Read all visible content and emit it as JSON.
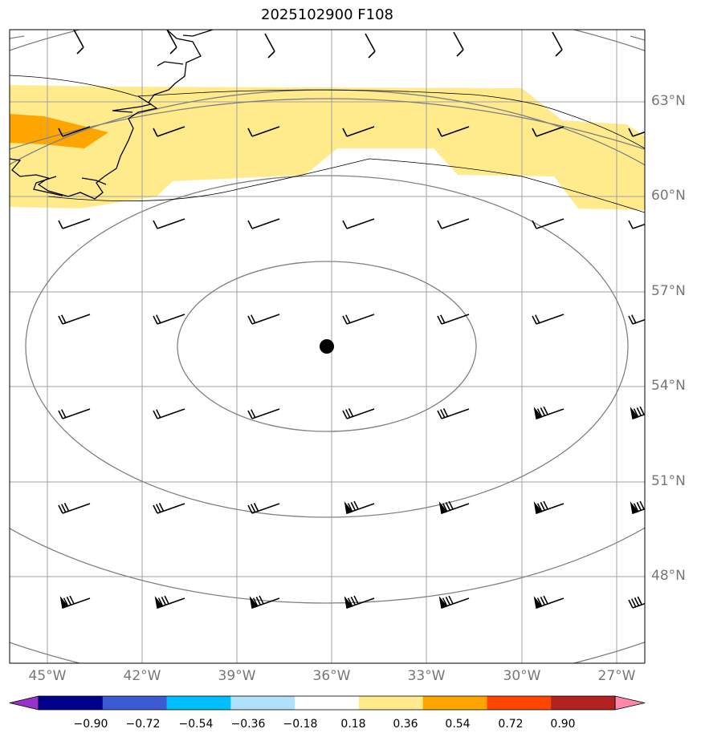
{
  "title": "2025102900 F108",
  "colors": {
    "fill_light": "#ffea8c",
    "fill_orange": "#ffa500",
    "grid": "#a0a0a0",
    "contour": "#808080",
    "coast": "#000000",
    "barb": "#000000"
  },
  "lat_labels": [
    "63°N",
    "60°N",
    "57°N",
    "54°N",
    "51°N",
    "48°N"
  ],
  "lon_labels": [
    "45°W",
    "42°W",
    "39°W",
    "36°W",
    "33°W",
    "30°W",
    "27°W"
  ],
  "center_marker": "storm-center-dot",
  "colorbar": {
    "labels": [
      "−0.90",
      "−0.72",
      "−0.54",
      "−0.36",
      "−0.18",
      "0.18",
      "0.36",
      "0.54",
      "0.72",
      "0.90"
    ],
    "colors": [
      "#9932cc",
      "#00008b",
      "#3c5ad2",
      "#00bfff",
      "#b0e0fa",
      "#ffffff",
      "#ffea8c",
      "#ffa500",
      "#ff4500",
      "#b22222",
      "#ff88aa"
    ]
  }
}
